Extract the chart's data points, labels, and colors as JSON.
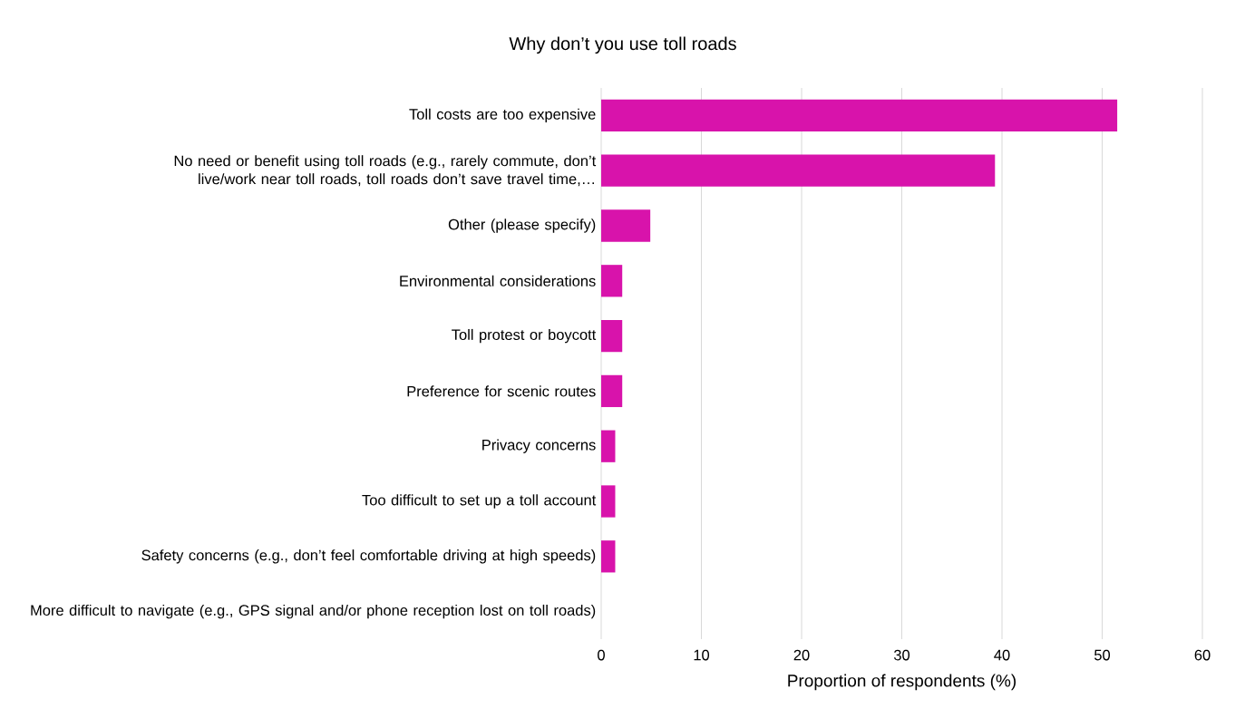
{
  "chart_data": {
    "type": "bar",
    "orientation": "horizontal",
    "title": "Why don’t you use toll roads",
    "xlabel": "Proportion of respondents (%)",
    "categories": [
      "Toll costs are too expensive",
      "No need or benefit using toll roads (e.g., rarely commute, don’t live/work near toll roads, toll roads don’t save travel time,…",
      "Other (please specify)",
      "Environmental considerations",
      "Toll protest or boycott",
      "Preference for scenic routes",
      "Privacy concerns",
      "Too difficult to set up a toll account",
      "Safety concerns (e.g., don’t feel comfortable driving at high speeds)",
      "More difficult to navigate (e.g., GPS signal and/or phone reception lost on toll roads)"
    ],
    "values": [
      51.5,
      39.3,
      4.9,
      2.1,
      2.1,
      2.1,
      1.4,
      1.4,
      1.4,
      0
    ],
    "color": "#d813ab",
    "xlim": [
      0,
      60
    ],
    "xticks": [
      0,
      10,
      20,
      30,
      40,
      50,
      60
    ],
    "grid": "x"
  }
}
